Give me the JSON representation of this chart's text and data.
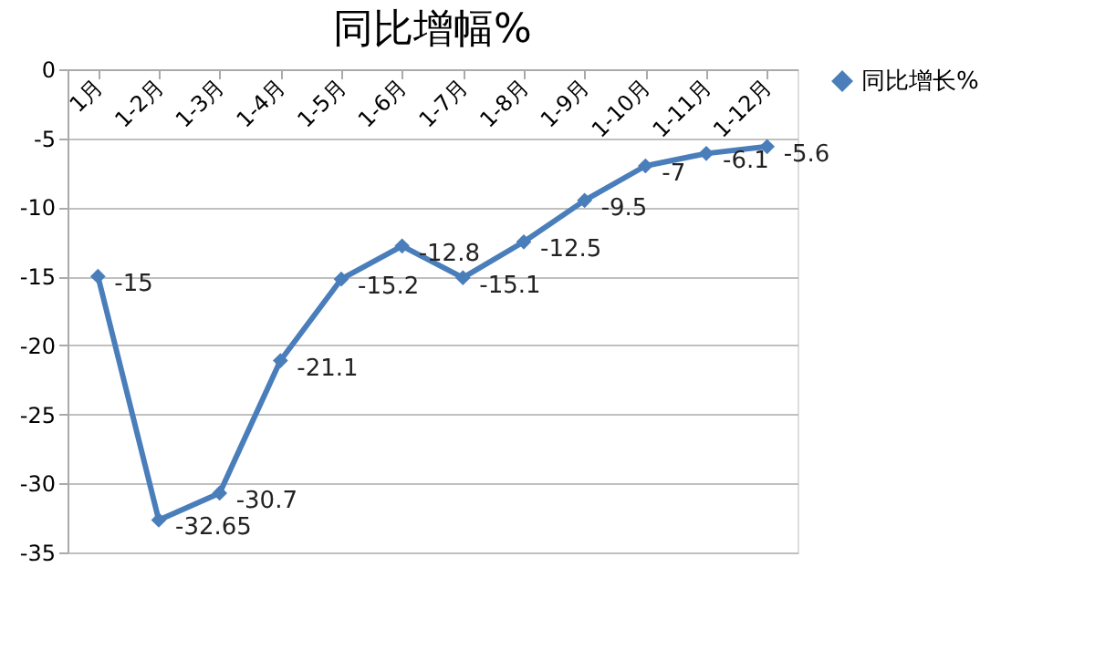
{
  "chart_data": {
    "type": "line",
    "title": "同比增幅%",
    "categories": [
      "1月",
      "1-2月",
      "1-3月",
      "1-4月",
      "1-5月",
      "1-6月",
      "1-7月",
      "1-8月",
      "1-9月",
      "1-10月",
      "1-11月",
      "1-12月"
    ],
    "series": [
      {
        "name": "同比增长%",
        "color": "#4a7ebb",
        "values": [
          -15,
          -32.65,
          -30.7,
          -21.1,
          -15.2,
          -12.8,
          -15.1,
          -12.5,
          -9.5,
          -7,
          -6.1,
          -5.6
        ]
      }
    ],
    "ylim": [
      -35,
      0
    ],
    "yticks": [
      -35,
      -30,
      -25,
      -20,
      -15,
      -10,
      -5,
      0
    ],
    "grid": "y",
    "legend": "right",
    "marker": "diamond",
    "line_style": "solid",
    "data_labels": true
  }
}
